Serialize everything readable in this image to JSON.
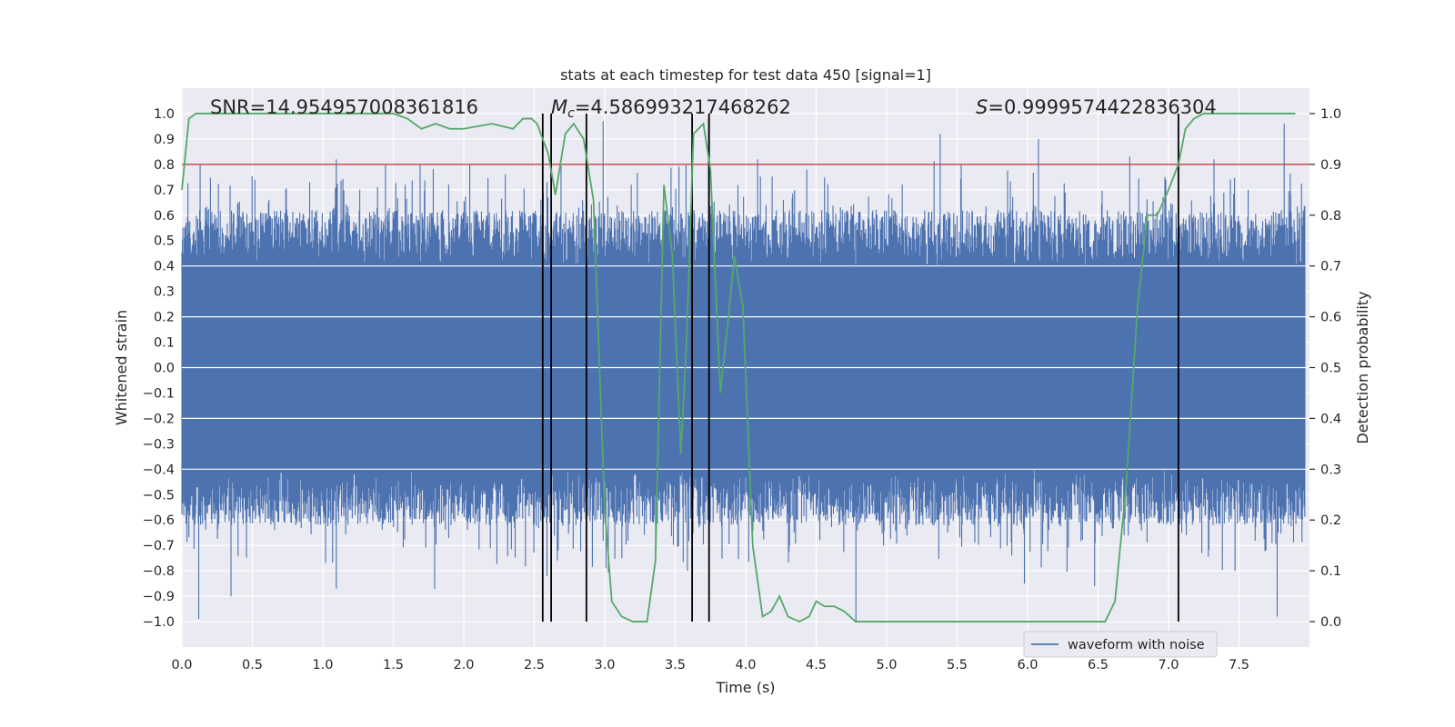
{
  "chart_data": {
    "type": "line",
    "title": "stats at each timestep for test data 450 [signal=1]",
    "xlabel": "Time (s)",
    "ylabel": "Whitened strain",
    "y2label": "Detection probability",
    "xlim": [
      0.0,
      8.0
    ],
    "ylim": [
      -1.1,
      1.1
    ],
    "y2lim": [
      -0.05,
      1.05
    ],
    "x_ticks": [
      0.0,
      0.5,
      1.0,
      1.5,
      2.0,
      2.5,
      3.0,
      3.5,
      4.0,
      4.5,
      5.0,
      5.5,
      6.0,
      6.5,
      7.0,
      7.5
    ],
    "x_tick_labels": [
      "0.0",
      "0.5",
      "1.0",
      "1.5",
      "2.0",
      "2.5",
      "3.0",
      "3.5",
      "4.0",
      "4.5",
      "5.0",
      "5.5",
      "6.0",
      "6.5",
      "7.0",
      "7.5"
    ],
    "y_ticks": [
      -1.0,
      -0.9,
      -0.8,
      -0.7,
      -0.6,
      -0.5,
      -0.4,
      -0.3,
      -0.2,
      -0.1,
      0.0,
      0.1,
      0.2,
      0.3,
      0.4,
      0.5,
      0.6,
      0.7,
      0.8,
      0.9,
      1.0
    ],
    "y_tick_labels": [
      "−1.0",
      "−0.9",
      "−0.8",
      "−0.7",
      "−0.6",
      "−0.5",
      "−0.4",
      "−0.3",
      "−0.2",
      "−0.1",
      "0.0",
      "0.1",
      "0.2",
      "0.3",
      "0.4",
      "0.5",
      "0.6",
      "0.7",
      "0.8",
      "0.9",
      "1.0"
    ],
    "y2_ticks": [
      0.0,
      0.1,
      0.2,
      0.3,
      0.4,
      0.5,
      0.6,
      0.7,
      0.8,
      0.9,
      1.0
    ],
    "y2_tick_labels": [
      "0.0",
      "0.1",
      "0.2",
      "0.3",
      "0.4",
      "0.5",
      "0.6",
      "0.7",
      "0.8",
      "0.9",
      "1.0"
    ],
    "grid": true,
    "legend_position": "bottom-right",
    "annotations": {
      "snr": "SNR=14.954957008361816",
      "mc_symbol": "M",
      "mc_sub": "c",
      "mc_value": "=4.586993217468262",
      "s_symbol": "S",
      "s_value": "=0.9999574422836304"
    },
    "series": [
      {
        "name": "waveform with noise",
        "axis": "left",
        "color": "#4c72b0",
        "kind": "noise_waveform",
        "core_band": [
          -0.4,
          0.4
        ],
        "envelope_peaks_upper": [
          [
            0.13,
            0.8
          ],
          [
            0.4,
            0.65
          ],
          [
            1.1,
            0.82
          ],
          [
            1.45,
            0.8
          ],
          [
            2.05,
            0.8
          ],
          [
            2.6,
            0.73
          ],
          [
            3.0,
            0.97
          ],
          [
            3.2,
            0.72
          ],
          [
            3.75,
            0.98
          ],
          [
            4.1,
            0.82
          ],
          [
            4.45,
            0.78
          ],
          [
            5.4,
            0.92
          ],
          [
            5.55,
            0.8
          ],
          [
            6.1,
            0.9
          ],
          [
            6.75,
            0.83
          ],
          [
            7.0,
            0.75
          ],
          [
            7.35,
            0.82
          ],
          [
            7.85,
            0.96
          ]
        ],
        "envelope_peaks_lower": [
          [
            0.12,
            -0.99
          ],
          [
            0.35,
            -0.9
          ],
          [
            1.1,
            -0.87
          ],
          [
            1.8,
            -0.87
          ],
          [
            2.6,
            -0.82
          ],
          [
            2.68,
            -0.72
          ],
          [
            3.02,
            -0.79
          ],
          [
            3.6,
            -0.8
          ],
          [
            4.8,
            -1.0
          ],
          [
            6.0,
            -0.85
          ],
          [
            6.5,
            -0.86
          ],
          [
            7.5,
            -0.8
          ],
          [
            7.8,
            -0.98
          ]
        ]
      },
      {
        "name": "detection probability",
        "axis": "right",
        "color": "#55a868",
        "x": [
          0.0,
          0.05,
          0.1,
          0.2,
          0.5,
          1.0,
          1.5,
          1.6,
          1.7,
          1.8,
          1.9,
          2.0,
          2.2,
          2.35,
          2.42,
          2.48,
          2.52,
          2.6,
          2.65,
          2.72,
          2.78,
          2.85,
          2.92,
          3.0,
          3.05,
          3.12,
          3.2,
          3.25,
          3.3,
          3.36,
          3.42,
          3.48,
          3.54,
          3.58,
          3.63,
          3.7,
          3.75,
          3.82,
          3.87,
          3.92,
          3.98,
          4.05,
          4.12,
          4.18,
          4.24,
          4.3,
          4.38,
          4.45,
          4.5,
          4.56,
          4.63,
          4.7,
          4.78,
          4.85,
          5.0,
          5.4,
          6.0,
          6.4,
          6.55,
          6.62,
          6.7,
          6.78,
          6.85,
          6.92,
          7.0,
          7.07,
          7.12,
          7.18,
          7.25,
          7.35,
          7.5,
          7.9
        ],
        "y": [
          0.85,
          0.99,
          1.0,
          1.0,
          1.0,
          1.0,
          1.0,
          0.99,
          0.97,
          0.98,
          0.97,
          0.97,
          0.98,
          0.97,
          0.99,
          0.99,
          0.98,
          0.92,
          0.84,
          0.96,
          0.98,
          0.95,
          0.83,
          0.22,
          0.04,
          0.01,
          0.0,
          0.0,
          0.0,
          0.12,
          0.86,
          0.72,
          0.33,
          0.55,
          0.96,
          0.98,
          0.89,
          0.45,
          0.58,
          0.72,
          0.62,
          0.15,
          0.01,
          0.02,
          0.05,
          0.01,
          0.0,
          0.01,
          0.04,
          0.03,
          0.03,
          0.02,
          0.0,
          0.0,
          0.0,
          0.0,
          0.0,
          0.0,
          0.0,
          0.04,
          0.27,
          0.62,
          0.8,
          0.8,
          0.85,
          0.9,
          0.97,
          0.99,
          1.0,
          1.0,
          1.0,
          1.0
        ]
      },
      {
        "name": "threshold",
        "axis": "right",
        "color": "#c44e52",
        "constant": 0.9
      }
    ],
    "vertical_markers": [
      2.56,
      2.62,
      2.87,
      3.62,
      3.74,
      7.07
    ],
    "vertical_marker_color": "#000000"
  }
}
